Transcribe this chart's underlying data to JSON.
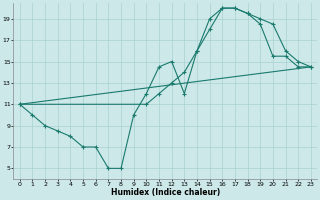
{
  "xlabel": "Humidex (Indice chaleur)",
  "xlim": [
    -0.5,
    23.5
  ],
  "ylim": [
    4,
    20.5
  ],
  "yticks": [
    5,
    7,
    9,
    11,
    13,
    15,
    17,
    19
  ],
  "xticks": [
    0,
    1,
    2,
    3,
    4,
    5,
    6,
    7,
    8,
    9,
    10,
    11,
    12,
    13,
    14,
    15,
    16,
    17,
    18,
    19,
    20,
    21,
    22,
    23
  ],
  "line_color": "#1a7a6e",
  "bg_color": "#cce8e8",
  "grid_color": "#aad0d0",
  "line1_marked": {
    "x": [
      0,
      1,
      2,
      3,
      4,
      5,
      6,
      7,
      8,
      9,
      10,
      11,
      12,
      13,
      14,
      15,
      16,
      17,
      18,
      19,
      20,
      21,
      22,
      23
    ],
    "y": [
      11,
      10,
      9,
      8.5,
      8,
      7,
      7,
      5,
      5,
      10,
      12,
      14.5,
      15,
      12,
      16,
      19,
      20,
      20,
      19.5,
      19,
      18.5,
      16,
      15,
      14.5
    ]
  },
  "line2_straight": {
    "x": [
      0,
      23
    ],
    "y": [
      11,
      14.5
    ]
  },
  "line3_marked": {
    "x": [
      0,
      10,
      11,
      12,
      13,
      14,
      15,
      16,
      17,
      18,
      19,
      20,
      21,
      22,
      23
    ],
    "y": [
      11,
      11,
      12,
      13,
      14,
      16,
      18,
      20,
      20,
      19.5,
      18.5,
      15.5,
      15.5,
      14.5,
      14.5
    ]
  }
}
